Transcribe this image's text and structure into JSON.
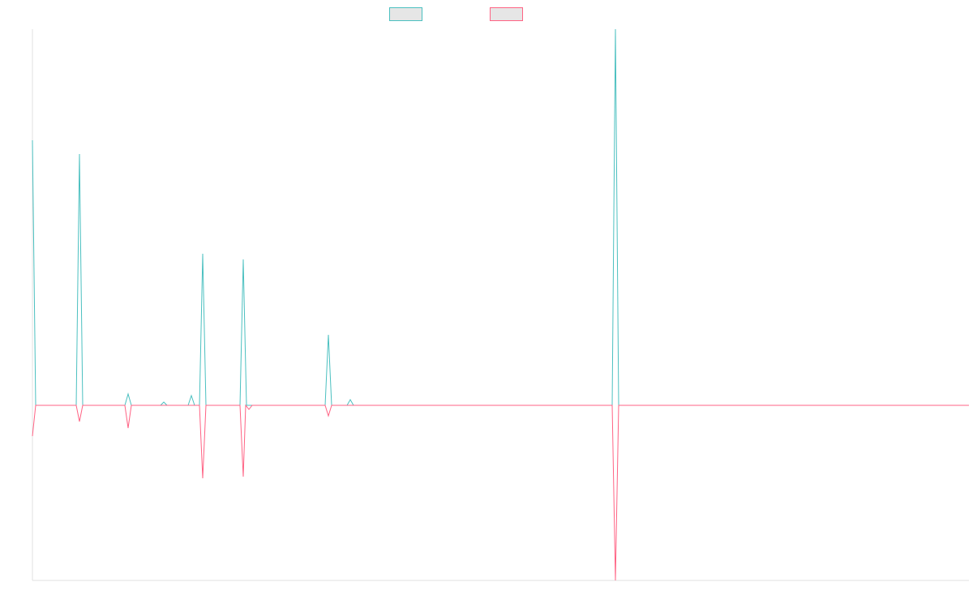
{
  "chart_data": {
    "type": "line",
    "xlim": [
      0,
      1155
    ],
    "ylim": [
      -216,
      464
    ],
    "series": [
      {
        "color": "#4bc0c0",
        "x": [
          0,
          4,
          54,
          58,
          62,
          114,
          118,
          122,
          158,
          162,
          166,
          192,
          196,
          200,
          206,
          210,
          214,
          256,
          260,
          264,
          361,
          365,
          369,
          388,
          392,
          396,
          715,
          719,
          723,
          1155
        ],
        "values": [
          327,
          0,
          0,
          310,
          0,
          0,
          14,
          0,
          0,
          4,
          0,
          0,
          12,
          0,
          0,
          187,
          0,
          0,
          180,
          0,
          0,
          87,
          0,
          0,
          7,
          0,
          0,
          464,
          0,
          0
        ]
      },
      {
        "color": "#ff6384",
        "x": [
          0,
          4,
          54,
          58,
          62,
          114,
          118,
          122,
          206,
          210,
          214,
          256,
          260,
          263,
          267,
          271,
          361,
          365,
          369,
          715,
          719,
          723,
          1155
        ],
        "values": [
          -38,
          0,
          0,
          -20,
          0,
          0,
          -28,
          0,
          0,
          -90,
          0,
          0,
          -88,
          0,
          -5,
          0,
          0,
          -13,
          0,
          0,
          -216,
          0,
          0
        ]
      }
    ]
  }
}
